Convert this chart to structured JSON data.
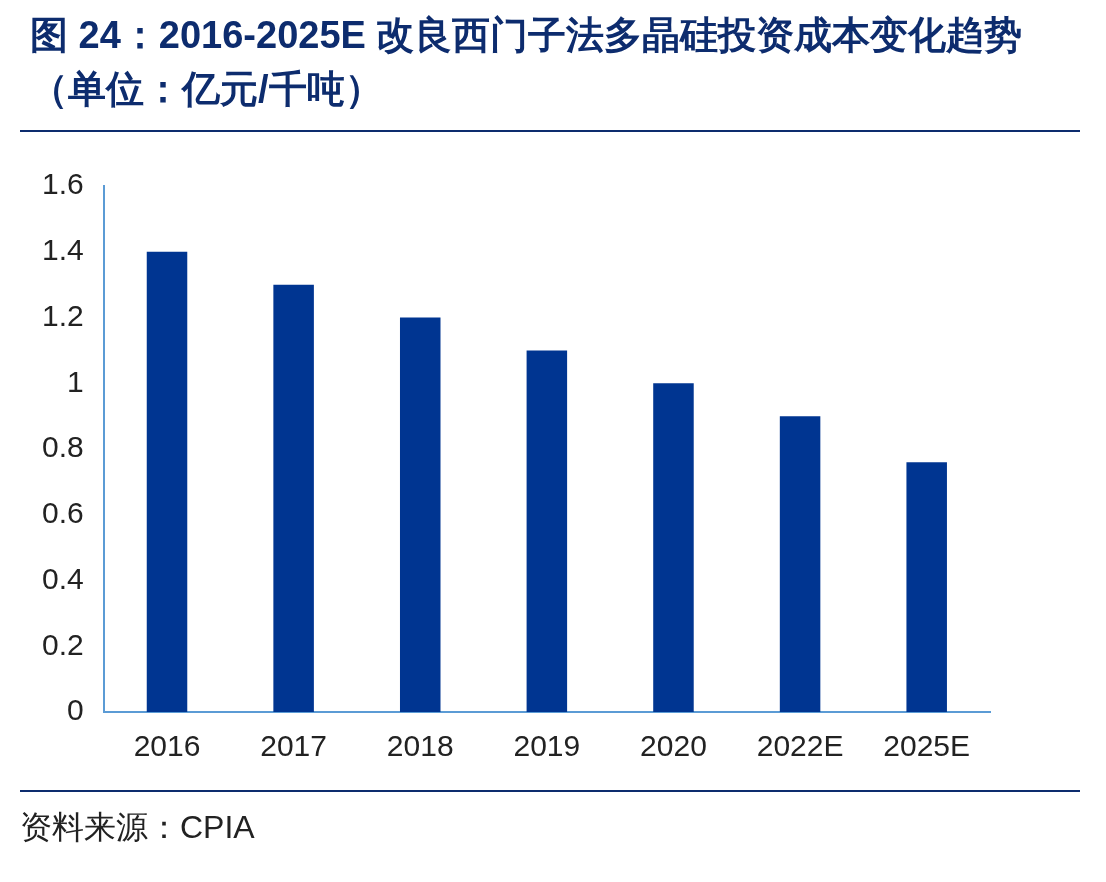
{
  "chart_data": {
    "type": "bar",
    "title": "图 24：2016-2025E 改良西门子法多晶硅投资成本变化趋势（单位：亿元/千吨）",
    "categories": [
      "2016",
      "2017",
      "2018",
      "2019",
      "2020",
      "2022E",
      "2025E"
    ],
    "values": [
      1.4,
      1.3,
      1.2,
      1.1,
      1.0,
      0.9,
      0.76
    ],
    "color": "#003591",
    "ylim": [
      0,
      1.6
    ],
    "yticks": [
      0,
      0.2,
      0.4,
      0.6,
      0.8,
      1,
      1.2,
      1.4,
      1.6
    ],
    "annotations": [
      "资料来源：CPIA"
    ]
  }
}
